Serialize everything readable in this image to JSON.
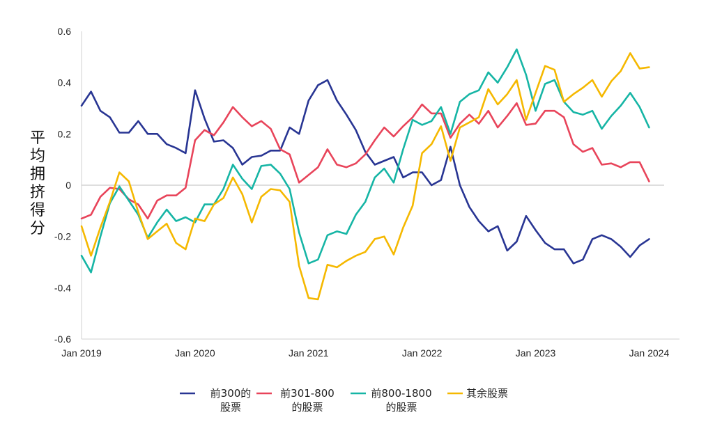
{
  "chart_data": {
    "type": "line",
    "title": "",
    "xlabel": "",
    "ylabel": "平均拥挤得分",
    "ylim": [
      -0.6,
      0.6
    ],
    "yticks": [
      -0.6,
      -0.4,
      -0.2,
      0,
      0.2,
      0.4,
      0.6
    ],
    "ytick_labels": [
      "-0.6",
      "-0.4",
      "-0.2",
      "0",
      "0.2",
      "0.4",
      "0.6"
    ],
    "xlim": [
      2019,
      2024.0833
    ],
    "xticks": [
      2019,
      2020,
      2021,
      2022,
      2023,
      2024
    ],
    "xtick_labels": [
      "Jan 2019",
      "Jan 2020",
      "Jan 2021",
      "Jan 2022",
      "Jan 2023",
      "Jan 2024"
    ],
    "x_start": 2019,
    "x_step": 0.08333,
    "zero_line": true,
    "legend_position": "bottom",
    "series": [
      {
        "name": "前300的股票",
        "legend_lines": [
          "前300的",
          "股票"
        ],
        "color": "#283593",
        "values": [
          0.31,
          0.365,
          0.29,
          0.265,
          0.205,
          0.205,
          0.25,
          0.2,
          0.2,
          0.16,
          0.145,
          0.125,
          0.37,
          0.26,
          0.17,
          0.175,
          0.145,
          0.08,
          0.11,
          0.115,
          0.135,
          0.135,
          0.225,
          0.2,
          0.33,
          0.39,
          0.41,
          0.33,
          0.275,
          0.215,
          0.13,
          0.08,
          0.095,
          0.11,
          0.03,
          0.05,
          0.05,
          0.0,
          0.02,
          0.15,
          0.0,
          -0.085,
          -0.14,
          -0.18,
          -0.16,
          -0.255,
          -0.22,
          -0.12,
          -0.175,
          -0.225,
          -0.25,
          -0.25,
          -0.305,
          -0.29,
          -0.21,
          -0.195,
          -0.21,
          -0.24,
          -0.28,
          -0.235,
          -0.21
        ]
      },
      {
        "name": "前301-800的股票",
        "legend_lines": [
          "前301-800",
          "的股票"
        ],
        "color": "#e8445a",
        "values": [
          -0.13,
          -0.115,
          -0.045,
          -0.01,
          -0.015,
          -0.055,
          -0.075,
          -0.13,
          -0.06,
          -0.04,
          -0.04,
          -0.01,
          0.175,
          0.215,
          0.195,
          0.245,
          0.305,
          0.265,
          0.23,
          0.25,
          0.22,
          0.14,
          0.12,
          0.01,
          0.04,
          0.07,
          0.14,
          0.08,
          0.07,
          0.085,
          0.12,
          0.175,
          0.225,
          0.19,
          0.23,
          0.265,
          0.315,
          0.28,
          0.28,
          0.185,
          0.24,
          0.275,
          0.24,
          0.29,
          0.225,
          0.27,
          0.32,
          0.235,
          0.24,
          0.29,
          0.29,
          0.265,
          0.16,
          0.13,
          0.145,
          0.08,
          0.085,
          0.07,
          0.09,
          0.09,
          0.015
        ]
      },
      {
        "name": "前800-1800的股票",
        "legend_lines": [
          "前800-1800",
          "的股票"
        ],
        "color": "#16b5a5",
        "values": [
          -0.275,
          -0.34,
          -0.2,
          -0.07,
          -0.005,
          -0.06,
          -0.115,
          -0.205,
          -0.145,
          -0.095,
          -0.14,
          -0.125,
          -0.145,
          -0.075,
          -0.075,
          -0.015,
          0.08,
          0.025,
          -0.015,
          0.075,
          0.08,
          0.045,
          -0.015,
          -0.185,
          -0.305,
          -0.29,
          -0.195,
          -0.18,
          -0.19,
          -0.115,
          -0.065,
          0.03,
          0.065,
          0.01,
          0.14,
          0.255,
          0.235,
          0.25,
          0.305,
          0.2,
          0.325,
          0.355,
          0.37,
          0.44,
          0.4,
          0.46,
          0.53,
          0.43,
          0.29,
          0.395,
          0.41,
          0.325,
          0.285,
          0.275,
          0.29,
          0.22,
          0.27,
          0.31,
          0.36,
          0.305,
          0.225
        ]
      },
      {
        "name": "其余股票",
        "legend_lines": [
          "其余股票"
        ],
        "color": "#f5b800",
        "values": [
          -0.16,
          -0.275,
          -0.165,
          -0.065,
          0.05,
          0.015,
          -0.105,
          -0.21,
          -0.18,
          -0.15,
          -0.225,
          -0.25,
          -0.13,
          -0.14,
          -0.075,
          -0.05,
          0.03,
          -0.035,
          -0.145,
          -0.045,
          -0.015,
          -0.02,
          -0.065,
          -0.315,
          -0.44,
          -0.445,
          -0.31,
          -0.32,
          -0.295,
          -0.275,
          -0.26,
          -0.21,
          -0.2,
          -0.27,
          -0.165,
          -0.08,
          0.125,
          0.16,
          0.23,
          0.095,
          0.225,
          0.245,
          0.265,
          0.375,
          0.315,
          0.355,
          0.41,
          0.255,
          0.36,
          0.465,
          0.45,
          0.325,
          0.355,
          0.38,
          0.41,
          0.345,
          0.405,
          0.445,
          0.515,
          0.455,
          0.46
        ]
      }
    ]
  }
}
